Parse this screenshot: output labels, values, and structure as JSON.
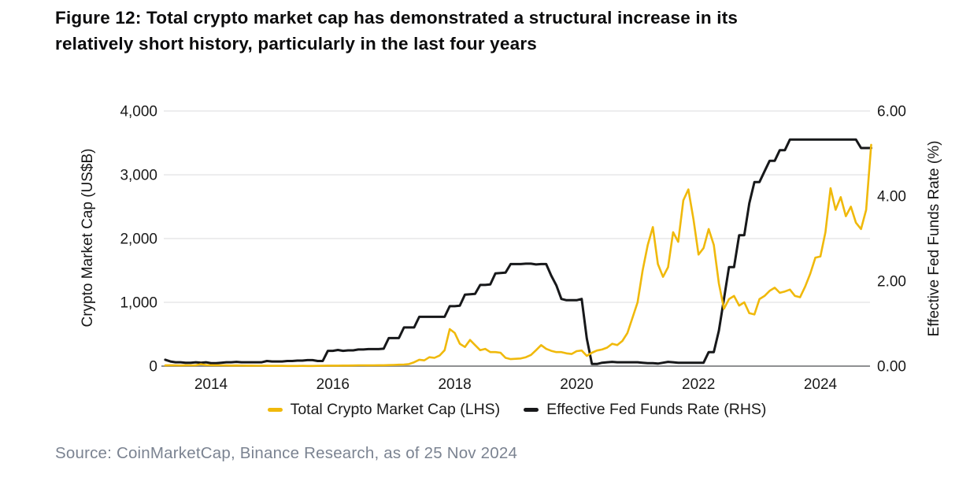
{
  "figure": {
    "title": "Figure 12: Total crypto market cap has demonstrated a structural increase in its relatively short history, particularly in the last four years",
    "title_line1": "Figure 12: Total crypto market cap has demonstrated a structural increase in its",
    "title_line2": "relatively short history, particularly in the last four years",
    "source": "Source: CoinMarketCap, Binance Research, as of 25 Nov 2024"
  },
  "colors": {
    "crypto_yellow": "#F0B90B",
    "fed_black": "#17181A",
    "grid": "#E7E7E8",
    "axis": "#8F9092",
    "tick_text": "#1A1A1A",
    "source_text": "#7B8391"
  },
  "chart_data": {
    "type": "line",
    "title": "",
    "grid": "horizontal",
    "legend_position": "bottom",
    "x_axis": {
      "min": 2013.25,
      "max": 2024.9,
      "tick_values": [
        2014,
        2016,
        2018,
        2020,
        2022,
        2024
      ],
      "tick_labels": [
        "2014",
        "2016",
        "2018",
        "2020",
        "2022",
        "2024"
      ]
    },
    "left_axis": {
      "label": "Crypto Market Cap (US$B)",
      "min": 0,
      "max": 4000,
      "tick_values": [
        0,
        1000,
        2000,
        3000,
        4000
      ],
      "tick_labels": [
        "0",
        "1,000",
        "2,000",
        "3,000",
        "4,000"
      ]
    },
    "right_axis": {
      "label": "Effective Fed Funds Rate (%)",
      "min": 0,
      "max": 6,
      "tick_values": [
        0,
        2,
        4,
        6
      ],
      "tick_labels": [
        "0.00",
        "2.00",
        "4.00",
        "6.00"
      ]
    },
    "series": [
      {
        "name": "Total Crypto Market Cap (LHS)",
        "axis": "left",
        "color": "#F0B90B",
        "unit": "US$B",
        "start_year": 2013,
        "start_month": 4,
        "frequency": "monthly",
        "values": [
          11,
          13,
          12,
          10,
          13,
          12,
          13,
          30,
          16,
          15,
          13,
          12,
          11,
          9,
          10,
          9,
          8,
          7,
          6,
          6,
          5,
          4,
          4,
          4,
          3,
          3,
          3,
          4,
          3,
          3,
          4,
          5,
          7,
          7,
          8,
          9,
          9,
          10,
          12,
          12,
          11,
          12,
          13,
          14,
          16,
          18,
          22,
          25,
          32,
          60,
          100,
          90,
          140,
          130,
          165,
          250,
          580,
          520,
          350,
          300,
          410,
          330,
          250,
          270,
          220,
          220,
          210,
          130,
          110,
          115,
          120,
          140,
          175,
          250,
          330,
          270,
          240,
          220,
          220,
          200,
          190,
          235,
          245,
          160,
          210,
          245,
          260,
          290,
          350,
          330,
          395,
          520,
          760,
          1000,
          1500,
          1900,
          2180,
          1600,
          1400,
          1550,
          2100,
          1950,
          2600,
          2770,
          2300,
          1750,
          1850,
          2150,
          1900,
          1300,
          900,
          1050,
          1100,
          950,
          1000,
          830,
          810,
          1050,
          1100,
          1180,
          1230,
          1150,
          1170,
          1200,
          1100,
          1080,
          1250,
          1450,
          1700,
          1720,
          2100,
          2790,
          2450,
          2650,
          2350,
          2500,
          2250,
          2150,
          2450,
          3470
        ]
      },
      {
        "name": "Effective Fed Funds Rate (RHS)",
        "axis": "right",
        "color": "#17181A",
        "unit": "%",
        "start_year": 2013,
        "start_month": 4,
        "frequency": "monthly",
        "values": [
          0.15,
          0.11,
          0.09,
          0.09,
          0.08,
          0.08,
          0.09,
          0.08,
          0.09,
          0.07,
          0.07,
          0.08,
          0.09,
          0.09,
          0.1,
          0.09,
          0.09,
          0.09,
          0.09,
          0.09,
          0.12,
          0.11,
          0.11,
          0.11,
          0.12,
          0.12,
          0.13,
          0.13,
          0.14,
          0.14,
          0.12,
          0.12,
          0.36,
          0.36,
          0.38,
          0.36,
          0.37,
          0.37,
          0.39,
          0.39,
          0.4,
          0.4,
          0.4,
          0.41,
          0.66,
          0.66,
          0.66,
          0.91,
          0.91,
          0.91,
          1.16,
          1.16,
          1.16,
          1.16,
          1.16,
          1.16,
          1.41,
          1.41,
          1.42,
          1.68,
          1.69,
          1.7,
          1.91,
          1.91,
          1.92,
          2.18,
          2.19,
          2.2,
          2.4,
          2.4,
          2.4,
          2.41,
          2.41,
          2.39,
          2.4,
          2.4,
          2.13,
          1.9,
          1.58,
          1.55,
          1.55,
          1.55,
          1.58,
          0.65,
          0.05,
          0.05,
          0.08,
          0.09,
          0.1,
          0.09,
          0.09,
          0.09,
          0.09,
          0.09,
          0.08,
          0.07,
          0.07,
          0.06,
          0.08,
          0.1,
          0.09,
          0.08,
          0.08,
          0.08,
          0.08,
          0.08,
          0.08,
          0.33,
          0.33,
          0.83,
          1.58,
          2.33,
          2.33,
          3.08,
          3.08,
          3.83,
          4.33,
          4.33,
          4.58,
          4.83,
          4.83,
          5.08,
          5.08,
          5.33,
          5.33,
          5.33,
          5.33,
          5.33,
          5.33,
          5.33,
          5.33,
          5.33,
          5.33,
          5.33,
          5.33,
          5.33,
          5.33,
          5.13,
          5.13,
          5.13
        ]
      }
    ]
  }
}
